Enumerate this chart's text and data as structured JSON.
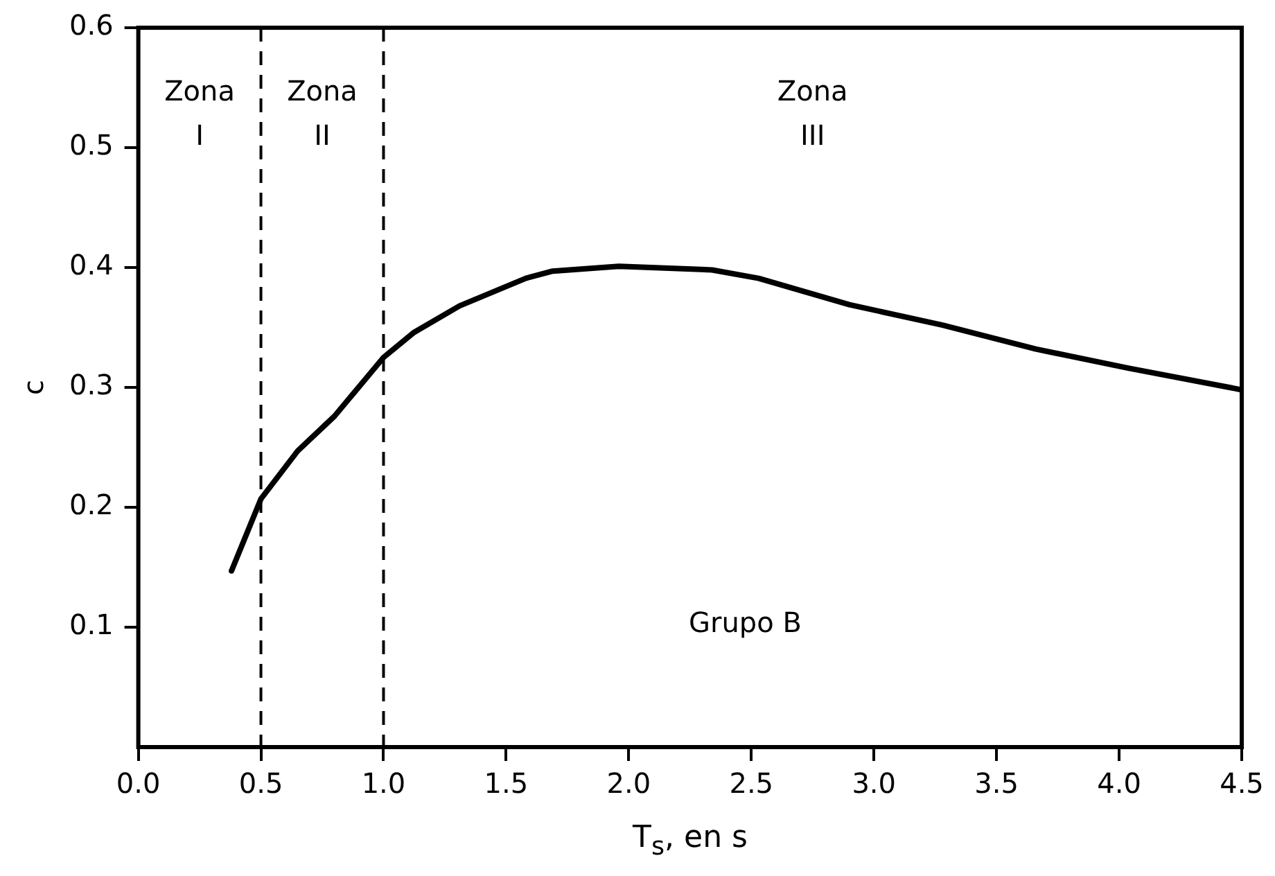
{
  "chart_data": {
    "type": "line",
    "xlabel": "T$_{s}$, en s",
    "ylabel": "c",
    "x": [
      0.38,
      0.5,
      0.65,
      0.8,
      1.0,
      1.125,
      1.31,
      1.58,
      1.69,
      1.96,
      2.34,
      2.53,
      2.9,
      3.28,
      3.66,
      4.04,
      4.5
    ],
    "series": [
      {
        "color": "#000000",
        "values": [
          0.147,
          0.207,
          0.247,
          0.276,
          0.325,
          0.346,
          0.368,
          0.391,
          0.397,
          0.401,
          0.398,
          0.391,
          0.369,
          0.352,
          0.332,
          0.316,
          0.298
        ]
      }
    ],
    "xlim": [
      0,
      4.5
    ],
    "xticks": [
      {
        "value": 0,
        "label": "0.0"
      },
      0.5,
      {
        "value": 1,
        "label": "1.0"
      },
      1.5,
      {
        "value": 2,
        "label": "2.0"
      },
      2.5,
      {
        "value": 3,
        "label": "3.0"
      },
      3.5,
      {
        "value": 4,
        "label": "4.0"
      },
      4.5
    ],
    "ylim": [
      0,
      0.6
    ],
    "yticks": [
      0.1,
      0.2,
      0.3,
      0.4,
      0.5,
      0.6
    ],
    "ref_lines": [
      {
        "axis": "x",
        "value": 0.5,
        "line_style": "dashed",
        "color": "#000000"
      },
      {
        "axis": "x",
        "value": 1.0,
        "line_style": "dashed",
        "color": "#000000"
      }
    ],
    "annotations": [
      "Zona I",
      "Zona II",
      "Zona III",
      "Grupo B"
    ],
    "grid": false,
    "legend": false,
    "marker": "none",
    "line_style": "solid"
  }
}
